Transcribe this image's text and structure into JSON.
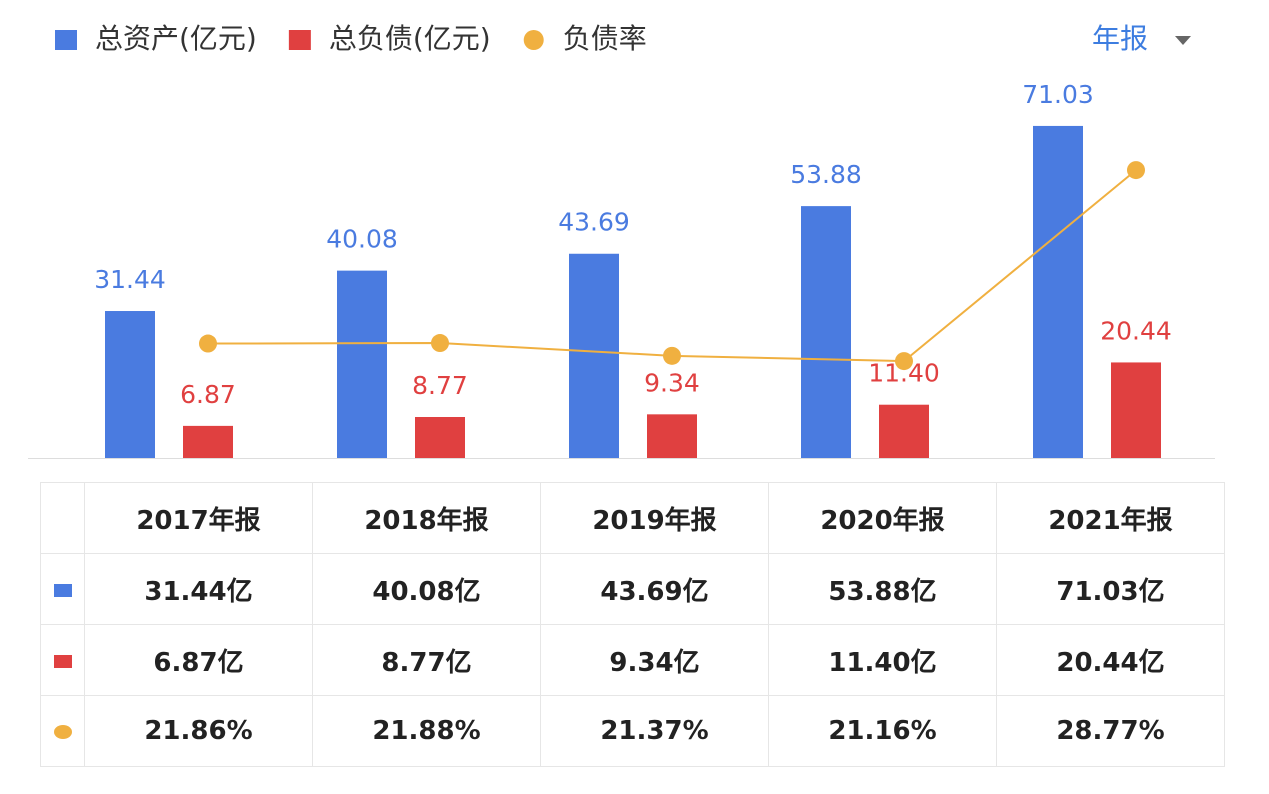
{
  "chart_data": {
    "type": "bar",
    "categories": [
      "2017年报",
      "2018年报",
      "2019年报",
      "2020年报",
      "2021年报"
    ],
    "series": [
      {
        "name": "总资产(亿元)",
        "color": "#4a7be0",
        "values": [
          31.44,
          40.08,
          43.69,
          53.88,
          71.03
        ]
      },
      {
        "name": "总负债(亿元)",
        "color": "#e04040",
        "values": [
          6.87,
          8.77,
          9.34,
          11.4,
          20.44
        ],
        "value_labels": [
          "6.87",
          "8.77",
          "9.34",
          "11.40",
          "20.44"
        ]
      },
      {
        "name": "负债率",
        "color": "#f0b040",
        "type": "line",
        "axis": "y2",
        "values": [
          21.86,
          21.88,
          21.37,
          21.16,
          28.77
        ]
      }
    ],
    "ylim": [
      0,
      80
    ],
    "y2lim": [
      17.3,
      32.2
    ],
    "legend": "top-left"
  },
  "period_selector": "年报",
  "table": {
    "rows": [
      [
        "31.44亿",
        "40.08亿",
        "43.69亿",
        "53.88亿",
        "71.03亿"
      ],
      [
        "6.87亿",
        "8.77亿",
        "9.34亿",
        "11.40亿",
        "20.44亿"
      ],
      [
        "21.86%",
        "21.88%",
        "21.37%",
        "21.16%",
        "28.77%"
      ]
    ]
  }
}
